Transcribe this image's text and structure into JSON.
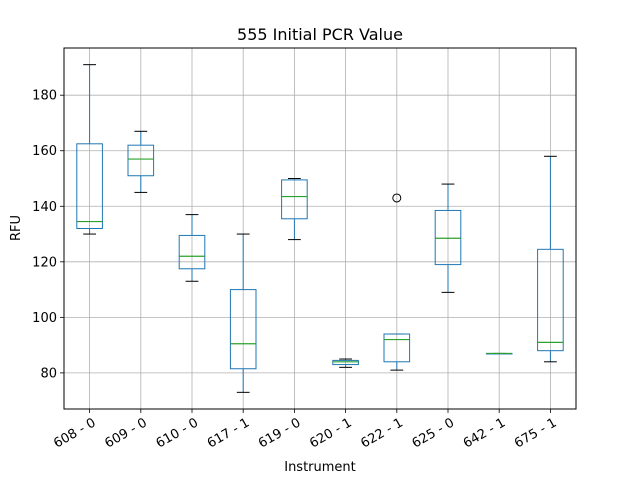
{
  "chart_data": {
    "type": "box",
    "title": "555 Initial PCR Value",
    "xlabel": "Instrument",
    "ylabel": "RFU",
    "ylim": [
      67,
      197
    ],
    "yticks": [
      80,
      100,
      120,
      140,
      160,
      180
    ],
    "grid": true,
    "colors": {
      "box": "#1f77b4",
      "median": "#2ca02c",
      "whisker": "#1f77b4",
      "cap": "#000000",
      "grid": "#b0b0b0",
      "outlier": "#000000"
    },
    "categories": [
      "608 - 0",
      "609 - 0",
      "610 - 0",
      "617 - 1",
      "619 - 0",
      "620 - 1",
      "622 - 1",
      "625 - 0",
      "642 - 1",
      "675 - 1"
    ],
    "boxes": [
      {
        "min": 130,
        "q1": 132,
        "median": 134.5,
        "q3": 162.5,
        "max": 191,
        "outliers": []
      },
      {
        "min": 145,
        "q1": 151,
        "median": 157,
        "q3": 162,
        "max": 167,
        "outliers": []
      },
      {
        "min": 113,
        "q1": 117.5,
        "median": 122,
        "q3": 129.5,
        "max": 137,
        "outliers": []
      },
      {
        "min": 73,
        "q1": 81.5,
        "median": 90.5,
        "q3": 110,
        "max": 130,
        "outliers": []
      },
      {
        "min": 128,
        "q1": 135.5,
        "median": 143.5,
        "q3": 149.5,
        "max": 150,
        "outliers": []
      },
      {
        "min": 82,
        "q1": 83,
        "median": 84,
        "q3": 84.5,
        "max": 85,
        "outliers": []
      },
      {
        "min": 81,
        "q1": 84,
        "median": 92,
        "q3": 94,
        "max": 94,
        "outliers": [
          143
        ]
      },
      {
        "min": 109,
        "q1": 119,
        "median": 128.5,
        "q3": 138.5,
        "max": 148,
        "outliers": []
      },
      {
        "min": 87,
        "q1": 87,
        "median": 87,
        "q3": 87,
        "max": 87,
        "outliers": []
      },
      {
        "min": 84,
        "q1": 88,
        "median": 91,
        "q3": 124.5,
        "max": 158,
        "outliers": []
      }
    ]
  }
}
